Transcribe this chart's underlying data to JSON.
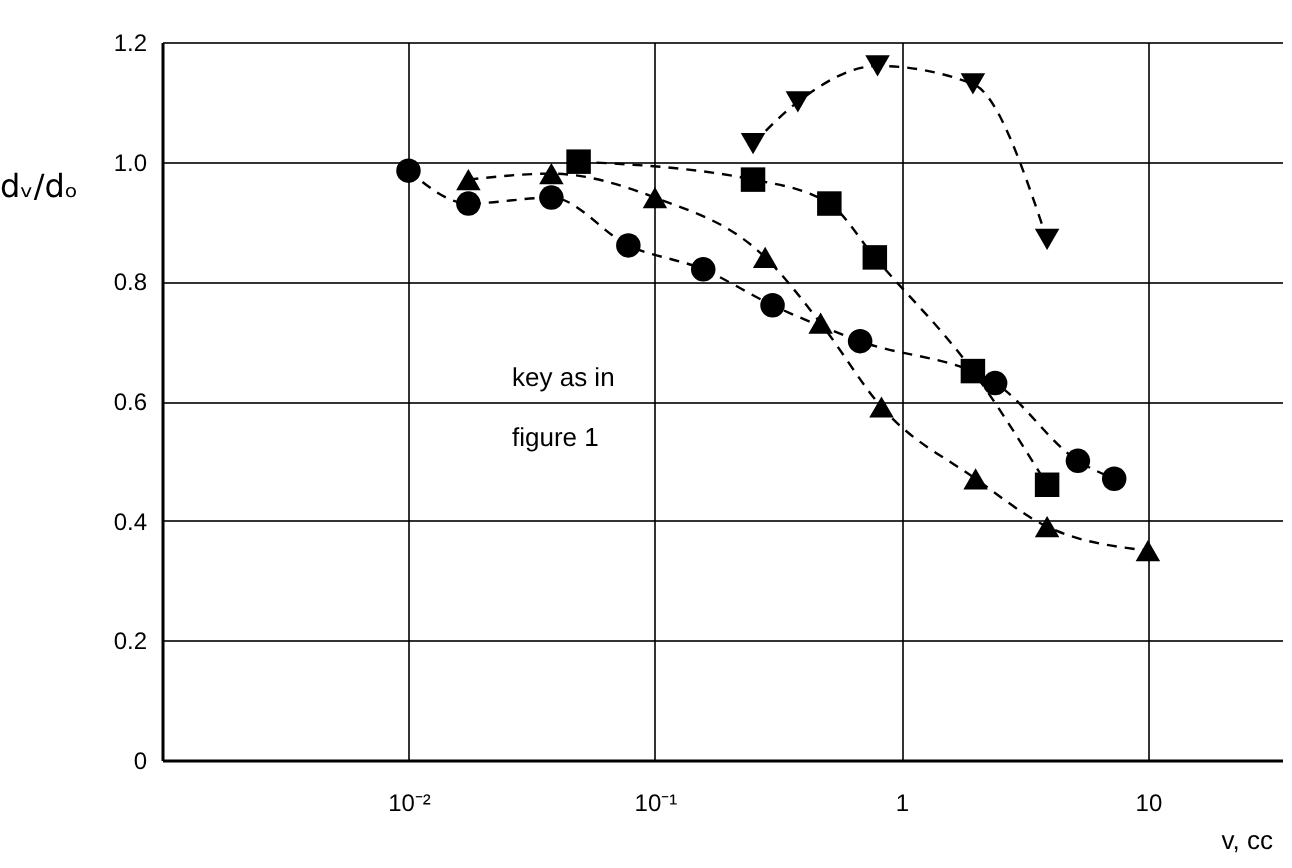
{
  "chart_data": {
    "type": "line",
    "xlabel": "v, cc",
    "ylabel": "dᵥ/dₒ",
    "annotations": [
      "key as in\nfigure 1"
    ],
    "log": "x",
    "xlim": [
      0.001,
      35
    ],
    "ylim": [
      0,
      1.2
    ],
    "xticks": [
      {
        "value": 0.01,
        "label": "10⁻²"
      },
      {
        "value": 0.1,
        "label": "10⁻¹"
      },
      1,
      10
    ],
    "yticks": [
      0,
      0.2,
      0.4,
      0.6,
      0.8,
      {
        "value": 1.0,
        "label": "1.0"
      },
      1.2
    ],
    "grid": true,
    "line_style": "dashed",
    "series": [
      {
        "color": "#000000",
        "marker": "circle",
        "x": [
          0.01,
          0.0175,
          0.038,
          0.078,
          0.157,
          0.3,
          0.68,
          2.4,
          5.2,
          7.3
        ],
        "values": [
          0.985,
          0.93,
          0.94,
          0.86,
          0.82,
          0.76,
          0.7,
          0.63,
          0.5,
          0.47
        ]
      },
      {
        "color": "#000000",
        "marker": "triangle",
        "x": [
          0.0175,
          0.038,
          0.1,
          0.28,
          0.47,
          0.83,
          2,
          3.9,
          10
        ],
        "values": [
          0.97,
          0.98,
          0.94,
          0.84,
          0.73,
          0.59,
          0.47,
          0.39,
          0.35
        ]
      },
      {
        "color": "#000000",
        "marker": "square",
        "x": [
          0.049,
          0.25,
          0.51,
          0.78,
          1.95,
          3.9
        ],
        "values": [
          1.0,
          0.97,
          0.93,
          0.84,
          0.65,
          0.46
        ]
      },
      {
        "color": "#000000",
        "marker": "triangle-down",
        "x": [
          0.25,
          0.38,
          0.8,
          1.95,
          3.9
        ],
        "values": [
          1.03,
          1.1,
          1.16,
          1.13,
          0.87
        ]
      }
    ]
  }
}
